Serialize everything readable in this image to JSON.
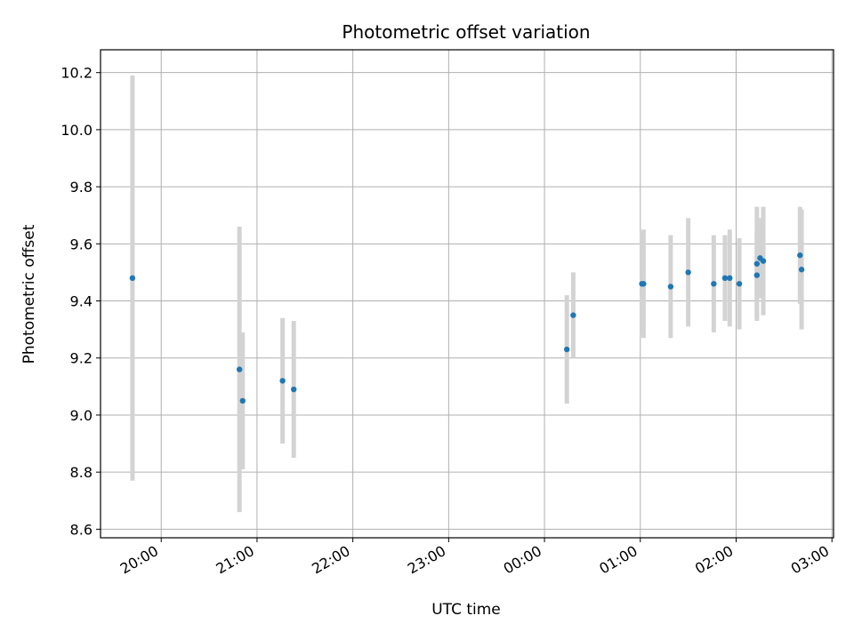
{
  "chart_data": {
    "type": "scatter",
    "title": "Photometric offset variation",
    "xlabel": "UTC time",
    "ylabel": "Photometric offset",
    "x_unit": "UTC time (HH:MM)",
    "xlim": [
      "19:22",
      "03:01"
    ],
    "ylim": [
      8.57,
      10.28
    ],
    "x_ticks": [
      "20:00",
      "21:00",
      "22:00",
      "23:00",
      "00:00",
      "01:00",
      "02:00",
      "03:00"
    ],
    "y_ticks": [
      "8.6",
      "8.8",
      "9.0",
      "9.2",
      "9.4",
      "9.6",
      "9.8",
      "10.0",
      "10.2"
    ],
    "grid": true,
    "colors": {
      "point": "#1f77b4",
      "errorbar": "#d3d3d3",
      "grid": "#b0b0b0"
    },
    "points": [
      {
        "x": "19:42",
        "y": 9.48,
        "err": 0.71
      },
      {
        "x": "20:49",
        "y": 9.16,
        "err": 0.5
      },
      {
        "x": "20:51",
        "y": 9.05,
        "err": 0.24
      },
      {
        "x": "21:16",
        "y": 9.12,
        "err": 0.22
      },
      {
        "x": "21:23",
        "y": 9.09,
        "err": 0.24
      },
      {
        "x": "00:14",
        "y": 9.23,
        "err": 0.19
      },
      {
        "x": "00:18",
        "y": 9.35,
        "err": 0.15
      },
      {
        "x": "01:01",
        "y": 9.46,
        "err": 0.18
      },
      {
        "x": "01:02",
        "y": 9.46,
        "err": 0.19
      },
      {
        "x": "01:19",
        "y": 9.45,
        "err": 0.18
      },
      {
        "x": "01:30",
        "y": 9.5,
        "err": 0.19
      },
      {
        "x": "01:46",
        "y": 9.46,
        "err": 0.17
      },
      {
        "x": "01:53",
        "y": 9.48,
        "err": 0.15
      },
      {
        "x": "01:56",
        "y": 9.48,
        "err": 0.17
      },
      {
        "x": "02:02",
        "y": 9.46,
        "err": 0.16
      },
      {
        "x": "02:13",
        "y": 9.53,
        "err": 0.2
      },
      {
        "x": "02:13",
        "y": 9.49,
        "err": 0.15
      },
      {
        "x": "02:15",
        "y": 9.55,
        "err": 0.14
      },
      {
        "x": "02:17",
        "y": 9.54,
        "err": 0.19
      },
      {
        "x": "02:40",
        "y": 9.56,
        "err": 0.17
      },
      {
        "x": "02:41",
        "y": 9.51,
        "err": 0.21
      }
    ]
  }
}
